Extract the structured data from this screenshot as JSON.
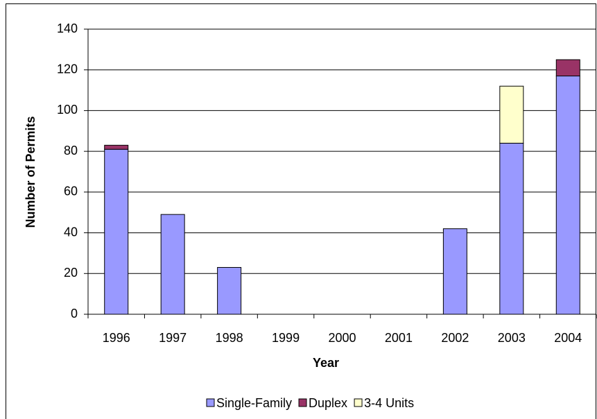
{
  "chart_data": {
    "type": "bar",
    "stacked": true,
    "x_label": "Year",
    "y_label": "Number of Permits",
    "categories": [
      "1996",
      "1997",
      "1998",
      "1999",
      "2000",
      "2001",
      "2002",
      "2003",
      "2004"
    ],
    "series": [
      {
        "name": "Single-Family",
        "color": "#9999ff",
        "values": [
          81,
          49,
          23,
          0,
          0,
          0,
          42,
          84,
          117
        ]
      },
      {
        "name": "Duplex",
        "color": "#993366",
        "values": [
          2,
          0,
          0,
          0,
          0,
          0,
          0,
          0,
          8
        ]
      },
      {
        "name": "3-4 Units",
        "color": "#ffffcc",
        "values": [
          0,
          0,
          0,
          0,
          0,
          0,
          0,
          28,
          0
        ]
      }
    ],
    "ylim": [
      0,
      140
    ],
    "yticks": [
      0,
      20,
      40,
      60,
      80,
      100,
      120,
      140
    ],
    "grid": true,
    "legend": "bottom"
  }
}
